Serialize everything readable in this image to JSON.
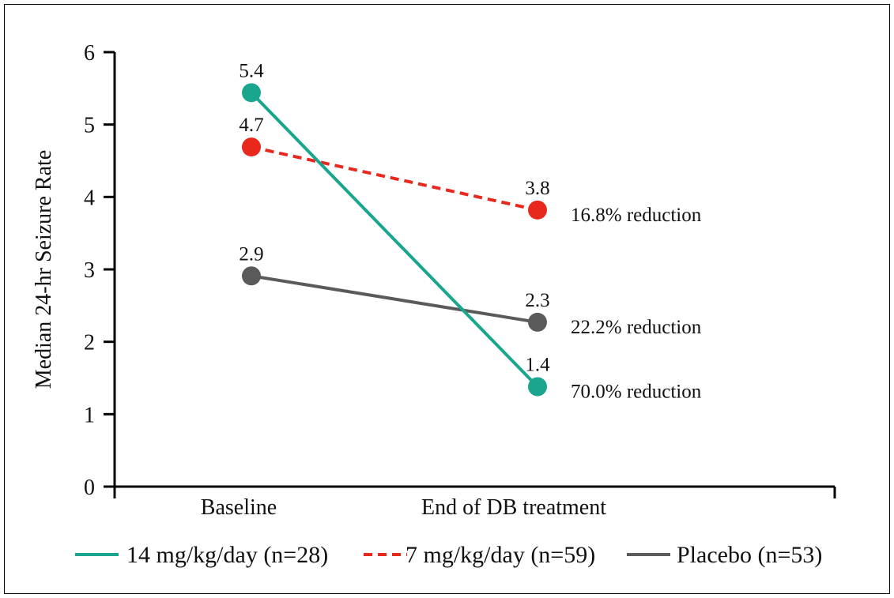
{
  "chart_data": {
    "type": "line",
    "title": "",
    "xlabel": "",
    "ylabel": "Median 24-hr Seizure Rate",
    "categories": [
      "Baseline",
      "End of DB treatment"
    ],
    "ylim": [
      0,
      6
    ],
    "yticks": [
      "0",
      "1",
      "2",
      "3",
      "4",
      "5",
      "6"
    ],
    "grid": false,
    "legend_position": "bottom",
    "series": [
      {
        "name": "14 mg/kg/day (n=28)",
        "values": [
          5.44,
          1.38
        ],
        "labels": [
          "5.4",
          "1.4"
        ],
        "color": "#1aa68e",
        "line_style": "solid",
        "annotation": "70.0% reduction"
      },
      {
        "name": "7 mg/kg/day (n=59)",
        "values": [
          4.69,
          3.82
        ],
        "labels": [
          "4.7",
          "3.8"
        ],
        "color": "#e8271d",
        "line_style": "dashed",
        "annotation": "16.8% reduction"
      },
      {
        "name": "Placebo (n=53)",
        "values": [
          2.91,
          2.27
        ],
        "labels": [
          "2.9",
          "2.3"
        ],
        "color": "#5a5a5a",
        "line_style": "solid",
        "annotation": "22.2% reduction"
      }
    ]
  }
}
